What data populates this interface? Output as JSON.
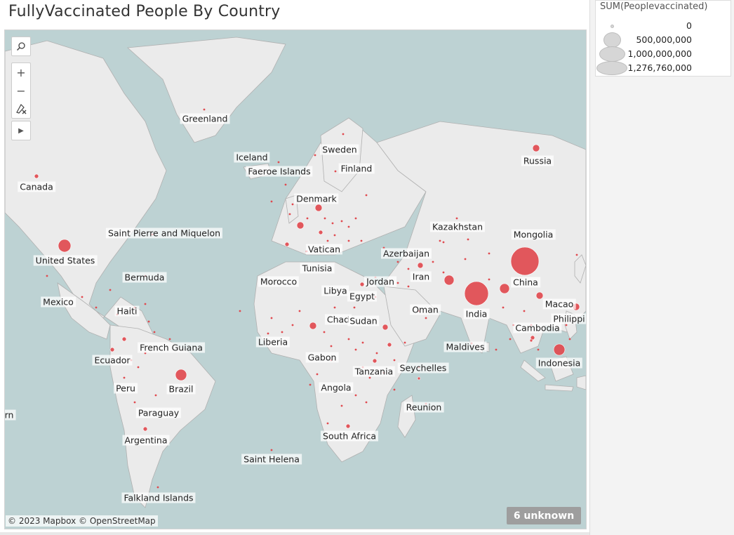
{
  "title": "FullyVaccinated People By Country",
  "legend": {
    "title": "SUM(Peoplevaccinated)",
    "items": [
      "0",
      "500,000,000",
      "1,000,000,000",
      "1,276,760,000"
    ]
  },
  "attribution": "© 2023 Mapbox © OpenStreetMap",
  "unknown_badge": "6 unknown",
  "colors": {
    "marker": "#e04a4f",
    "water": "#bdd2d3",
    "land": "#ebebeb"
  },
  "toolbar": {
    "search_icon": "magnifier-icon",
    "zoom_in": "+",
    "zoom_out": "−",
    "pin_icon": "reset-pin-icon",
    "expand_icon": "▶"
  },
  "labels": {
    "greenland": "Greenland",
    "iceland": "Iceland",
    "faeroe": "Faeroe Islands",
    "sweden": "Sweden",
    "finland": "Finland",
    "russia": "Russia",
    "canada": "Canada",
    "denmark": "Denmark",
    "kazakhstan": "Kazakhstan",
    "mongolia": "Mongolia",
    "spm": "Saint Pierre and Miquelon",
    "usa": "United States",
    "vatican": "Vatican",
    "azerbaijan": "Azerbaijan",
    "tunisia": "Tunisia",
    "iran": "Iran",
    "bermuda": "Bermuda",
    "morocco": "Morocco",
    "jordan": "Jordan",
    "china": "China",
    "libya": "Libya",
    "egypt": "Egypt",
    "mexico": "Mexico",
    "india": "India",
    "macao": "Macao",
    "haiti": "Haiti",
    "oman": "Oman",
    "philippines": "Philippi",
    "chad": "Chad",
    "sudan": "Sudan",
    "cambodia": "Cambodia",
    "french_guiana": "French Guiana",
    "liberia": "Liberia",
    "maldives": "Maldives",
    "ecuador": "Ecuador",
    "gabon": "Gabon",
    "indonesia": "Indonesia",
    "seychelles": "Seychelles",
    "tanzania": "Tanzania",
    "peru": "Peru",
    "brazil": "Brazil",
    "angola": "Angola",
    "reunion": "Reunion",
    "paraguay": "Paraguay",
    "rn": "rn",
    "south_africa": "South Africa",
    "argentina": "Argentina",
    "saint_helena": "Saint Helena",
    "falkland": "Falkland Islands"
  }
}
